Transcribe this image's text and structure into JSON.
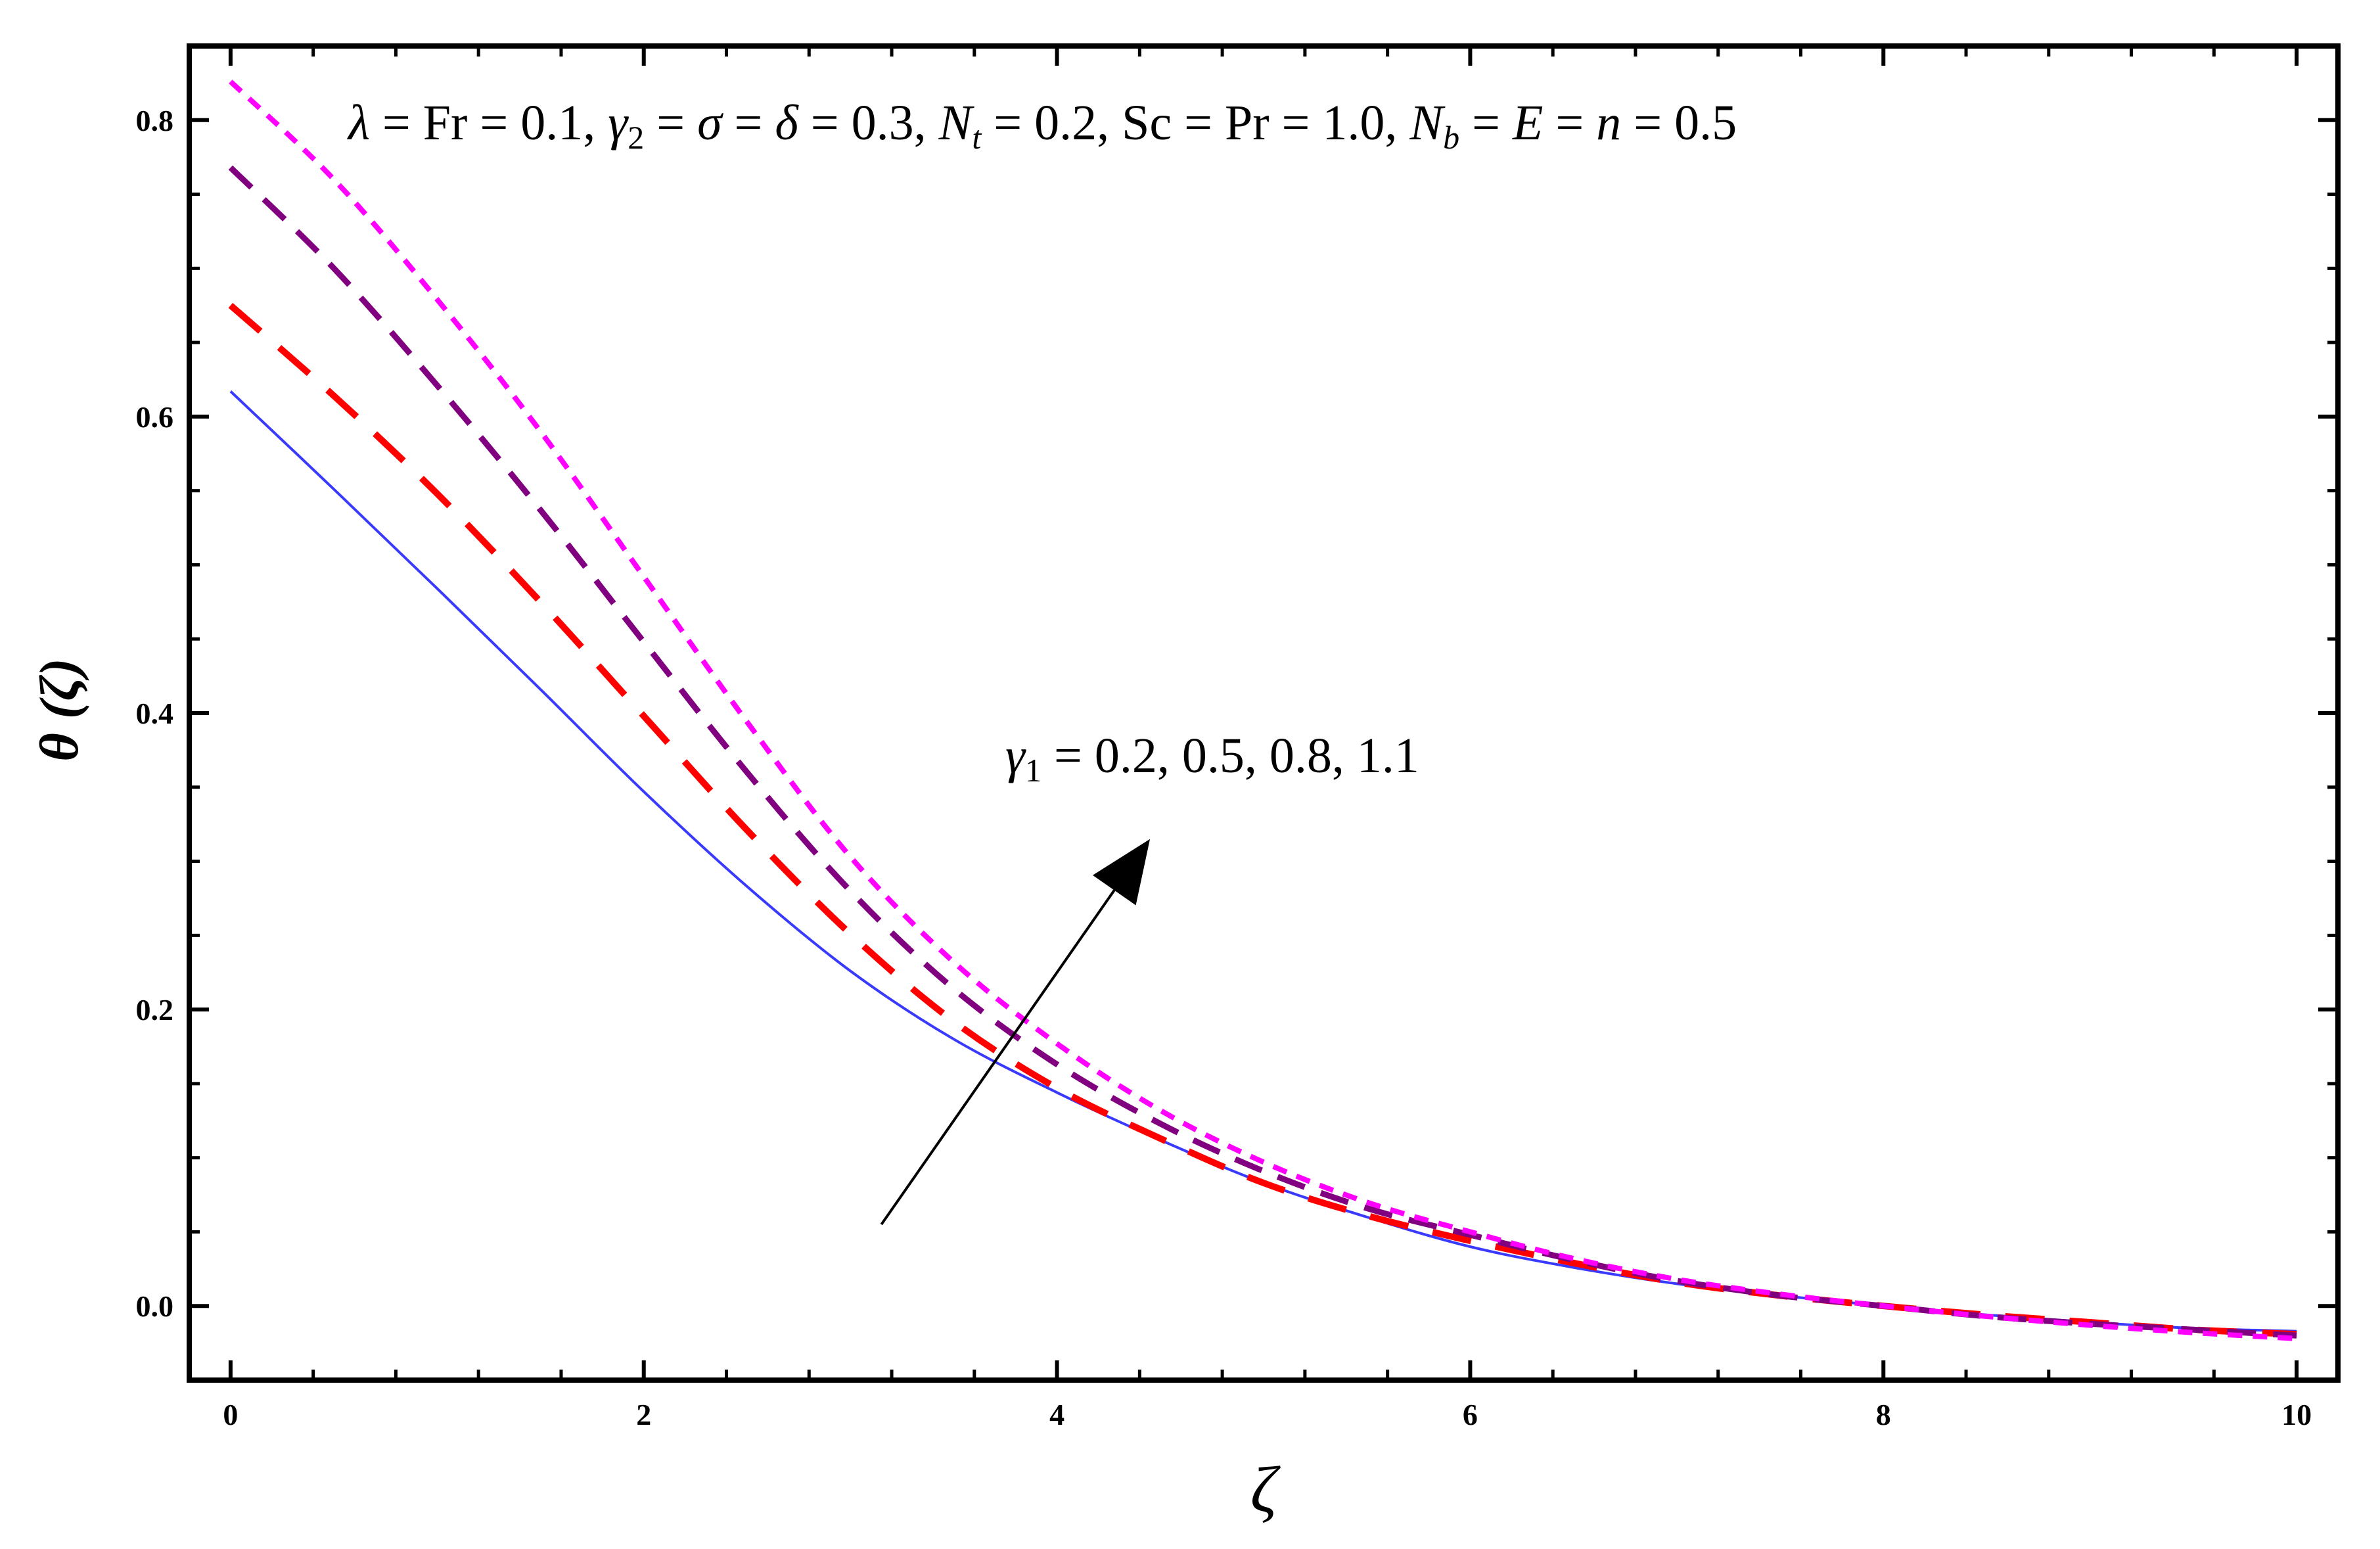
{
  "chart_data": {
    "type": "line",
    "xlabel": "ζ",
    "ylabel": "θ (ζ)",
    "xlim": [
      -0.2,
      10.2
    ],
    "ylim": [
      -0.05,
      0.85
    ],
    "x_ticks": [
      0,
      2,
      4,
      6,
      8,
      10
    ],
    "y_ticks": [
      0.0,
      0.2,
      0.4,
      0.6,
      0.8
    ],
    "x_tick_labels": [
      "0",
      "2",
      "4",
      "6",
      "8",
      "10"
    ],
    "y_tick_labels": [
      "0.0",
      "0.2",
      "0.4",
      "0.6",
      "0.8"
    ],
    "grid": false,
    "legend": "none",
    "annotations": {
      "params": {
        "lambda_sym": "λ",
        "eq_fr": " = Fr = 0.1, ",
        "gamma_sym": "γ",
        "gamma_sub": "2",
        "eq_sigma": " = ",
        "sigma_sym": "σ",
        "eq_delta": " = ",
        "delta_sym": "δ",
        "eq_03": " = 0.3, ",
        "nt_sym": "N",
        "nt_sub": "t",
        "eq_nt": " = 0.2, Sc = Pr = 1.0, ",
        "nb_sym": "N",
        "nb_sub": "b",
        "eq_e": " = ",
        "e_sym": "E",
        "eq_n": " = ",
        "n_sym": "n",
        "eq_end": " = 0.5"
      },
      "gamma1": {
        "gamma_sym": "γ",
        "gamma_sub": "1",
        "text": " = 0.2, 0.5, 0.8, 1.1"
      }
    },
    "arrow": {
      "from": [
        3.15,
        0.055
      ],
      "to": [
        4.45,
        0.315
      ]
    },
    "series": [
      {
        "color": "#3a3aff",
        "style": "solid",
        "x": [
          0,
          0.5,
          1,
          1.5,
          2,
          2.5,
          3,
          3.5,
          4,
          4.5,
          5,
          5.5,
          6,
          6.5,
          7,
          7.5,
          8,
          8.5,
          9,
          9.5,
          10
        ],
        "y": [
          0.617,
          0.551,
          0.484,
          0.416,
          0.347,
          0.283,
          0.226,
          0.18,
          0.144,
          0.112,
          0.083,
          0.06,
          0.04,
          0.026,
          0.015,
          0.007,
          0.0,
          -0.006,
          -0.011,
          -0.015,
          -0.017
        ]
      },
      {
        "color": "#ff0000",
        "style": "long-dash",
        "x": [
          0,
          0.5,
          1,
          1.5,
          2,
          2.5,
          3,
          3.5,
          4,
          4.5,
          5,
          5.5,
          6,
          6.5,
          7,
          7.5,
          8,
          8.5,
          9,
          9.5,
          10
        ],
        "y": [
          0.675,
          0.614,
          0.548,
          0.475,
          0.398,
          0.321,
          0.251,
          0.192,
          0.147,
          0.113,
          0.083,
          0.061,
          0.044,
          0.029,
          0.016,
          0.007,
          0.0,
          -0.006,
          -0.011,
          -0.016,
          -0.019
        ]
      },
      {
        "color": "#800080",
        "style": "medium-dash",
        "x": [
          0,
          0.5,
          1,
          1.5,
          2,
          2.5,
          3,
          3.5,
          4,
          4.5,
          5,
          5.5,
          6,
          6.5,
          7,
          7.5,
          8,
          8.5,
          9,
          9.5,
          10
        ],
        "y": [
          0.768,
          0.7,
          0.621,
          0.537,
          0.448,
          0.36,
          0.28,
          0.214,
          0.163,
          0.123,
          0.091,
          0.066,
          0.048,
          0.031,
          0.017,
          0.007,
          0.0,
          -0.007,
          -0.012,
          -0.016,
          -0.02
        ]
      },
      {
        "color": "#ff00ff",
        "style": "short-dash",
        "x": [
          0,
          0.5,
          1,
          1.5,
          2,
          2.5,
          3,
          3.5,
          4,
          4.5,
          5,
          5.5,
          6,
          6.5,
          7,
          7.5,
          8,
          8.5,
          9,
          9.5,
          10
        ],
        "y": [
          0.826,
          0.76,
          0.679,
          0.59,
          0.492,
          0.394,
          0.303,
          0.232,
          0.177,
          0.132,
          0.097,
          0.07,
          0.05,
          0.032,
          0.018,
          0.008,
          0.0,
          -0.007,
          -0.013,
          -0.018,
          -0.022
        ]
      }
    ]
  }
}
